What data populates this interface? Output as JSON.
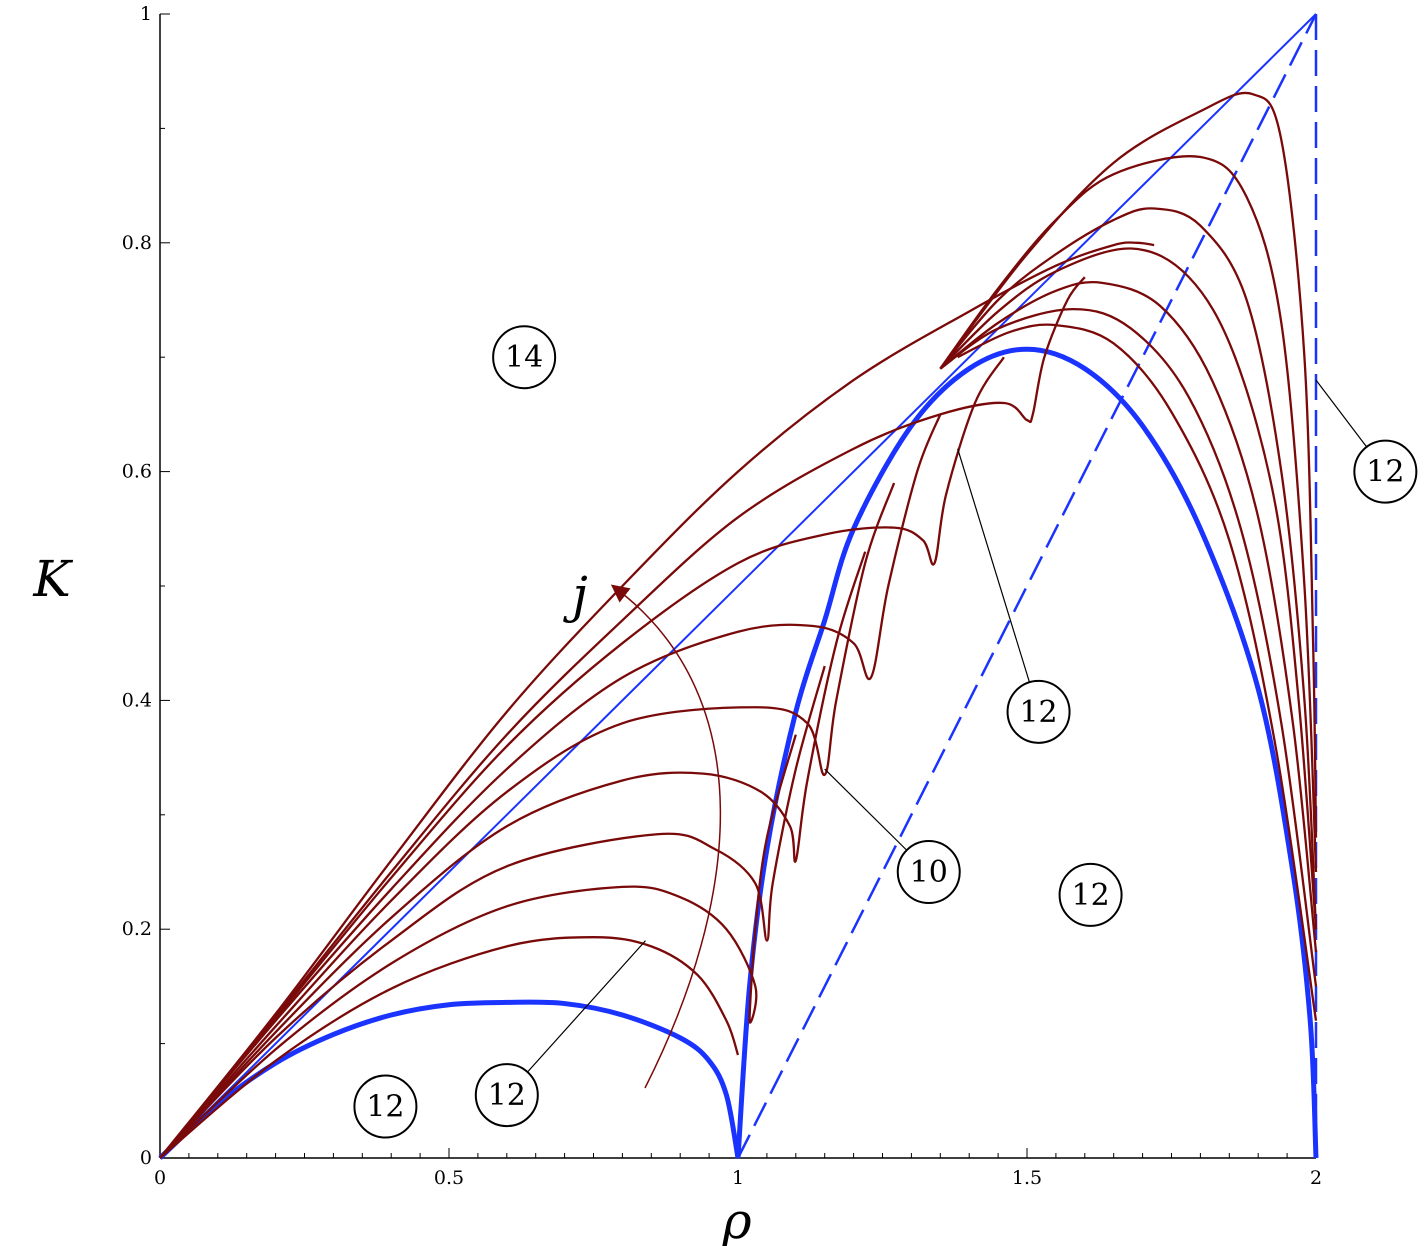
{
  "chart_data": {
    "type": "line",
    "xlabel": "ρ",
    "ylabel": "K",
    "xlim": [
      0,
      2
    ],
    "ylim": [
      0,
      1
    ],
    "x_ticks": [
      {
        "value": 0,
        "label": "0"
      },
      {
        "value": 0.5,
        "label": "0.5"
      },
      {
        "value": 1,
        "label": "1"
      },
      {
        "value": 1.5,
        "label": "1.5"
      },
      {
        "value": 2,
        "label": "2"
      }
    ],
    "y_ticks": [
      {
        "value": 0,
        "label": "0"
      },
      {
        "value": 0.2,
        "label": "0.2"
      },
      {
        "value": 0.4,
        "label": "0.4"
      },
      {
        "value": 0.6,
        "label": "0.6"
      },
      {
        "value": 0.8,
        "label": "0.8"
      },
      {
        "value": 1,
        "label": "1"
      }
    ],
    "grid": false,
    "legend": "none",
    "colors": {
      "boundary": "#1a33ff",
      "family": "#7a0a0a",
      "annotation": "#000000"
    },
    "boundary_curves": [
      {
        "style": "thick",
        "points": [
          [
            0,
            0
          ],
          [
            0.1,
            0.047
          ],
          [
            0.2,
            0.083
          ],
          [
            0.3,
            0.108
          ],
          [
            0.4,
            0.125
          ],
          [
            0.5,
            0.134
          ],
          [
            0.6,
            0.136
          ],
          [
            0.7,
            0.135
          ],
          [
            0.8,
            0.125
          ],
          [
            0.9,
            0.105
          ],
          [
            0.95,
            0.085
          ],
          [
            0.98,
            0.055
          ],
          [
            1.0,
            0.0
          ]
        ]
      },
      {
        "style": "thick",
        "points": [
          [
            1.0,
            0.0
          ],
          [
            1.02,
            0.15
          ],
          [
            1.05,
            0.27
          ],
          [
            1.1,
            0.39
          ],
          [
            1.15,
            0.47
          ],
          [
            1.2,
            0.55
          ],
          [
            1.3,
            0.64
          ],
          [
            1.4,
            0.69
          ],
          [
            1.5,
            0.707
          ],
          [
            1.6,
            0.69
          ],
          [
            1.7,
            0.64
          ],
          [
            1.8,
            0.55
          ],
          [
            1.9,
            0.41
          ],
          [
            1.96,
            0.25
          ],
          [
            1.99,
            0.12
          ],
          [
            2.0,
            0.0
          ]
        ]
      },
      {
        "style": "thin",
        "points": [
          [
            0,
            0
          ],
          [
            2,
            1
          ]
        ]
      },
      {
        "style": "dashed",
        "points": [
          [
            1,
            0
          ],
          [
            2,
            1
          ]
        ]
      },
      {
        "style": "dashed",
        "points": [
          [
            2,
            1
          ],
          [
            2,
            0
          ]
        ]
      }
    ],
    "series": [
      {
        "peak": [
          0.75,
          0.193
        ],
        "points": [
          [
            0,
            0
          ],
          [
            0.2,
            0.085
          ],
          [
            0.4,
            0.148
          ],
          [
            0.6,
            0.185
          ],
          [
            0.75,
            0.193
          ],
          [
            0.85,
            0.185
          ],
          [
            0.93,
            0.16
          ],
          [
            0.98,
            0.12
          ],
          [
            1.0,
            0.09
          ]
        ]
      },
      {
        "peak": [
          0.8,
          0.237
        ],
        "points": [
          [
            0,
            0
          ],
          [
            0.2,
            0.095
          ],
          [
            0.4,
            0.17
          ],
          [
            0.6,
            0.22
          ],
          [
            0.8,
            0.237
          ],
          [
            0.9,
            0.228
          ],
          [
            0.98,
            0.2
          ],
          [
            1.03,
            0.15
          ],
          [
            1.02,
            0.12
          ],
          [
            1.03,
            0.2
          ],
          [
            1.05,
            0.28
          ],
          [
            1.1,
            0.37
          ]
        ]
      },
      {
        "peak": [
          0.86,
          0.283
        ],
        "points": [
          [
            0,
            0
          ],
          [
            0.2,
            0.105
          ],
          [
            0.4,
            0.19
          ],
          [
            0.6,
            0.255
          ],
          [
            0.86,
            0.283
          ],
          [
            0.96,
            0.27
          ],
          [
            1.03,
            0.24
          ],
          [
            1.05,
            0.19
          ],
          [
            1.06,
            0.24
          ],
          [
            1.1,
            0.34
          ],
          [
            1.15,
            0.43
          ]
        ]
      },
      {
        "peak": [
          0.94,
          0.336
        ],
        "points": [
          [
            0,
            0
          ],
          [
            0.2,
            0.11
          ],
          [
            0.4,
            0.21
          ],
          [
            0.6,
            0.29
          ],
          [
            0.8,
            0.33
          ],
          [
            0.94,
            0.336
          ],
          [
            1.04,
            0.32
          ],
          [
            1.09,
            0.29
          ],
          [
            1.1,
            0.26
          ],
          [
            1.12,
            0.33
          ],
          [
            1.17,
            0.45
          ],
          [
            1.22,
            0.53
          ]
        ]
      },
      {
        "peak": [
          1.03,
          0.394
        ],
        "points": [
          [
            0,
            0
          ],
          [
            0.2,
            0.115
          ],
          [
            0.4,
            0.225
          ],
          [
            0.6,
            0.32
          ],
          [
            0.8,
            0.38
          ],
          [
            1.03,
            0.394
          ],
          [
            1.12,
            0.38
          ],
          [
            1.15,
            0.335
          ],
          [
            1.17,
            0.4
          ],
          [
            1.22,
            0.52
          ],
          [
            1.27,
            0.59
          ]
        ]
      },
      {
        "peak": [
          1.13,
          0.465
        ],
        "points": [
          [
            0,
            0
          ],
          [
            0.2,
            0.12
          ],
          [
            0.4,
            0.235
          ],
          [
            0.6,
            0.34
          ],
          [
            0.8,
            0.42
          ],
          [
            1.0,
            0.46
          ],
          [
            1.13,
            0.465
          ],
          [
            1.2,
            0.45
          ],
          [
            1.23,
            0.42
          ],
          [
            1.26,
            0.5
          ],
          [
            1.31,
            0.6
          ],
          [
            1.35,
            0.65
          ]
        ]
      },
      {
        "peak": [
          1.27,
          0.551
        ],
        "points": [
          [
            0,
            0
          ],
          [
            0.2,
            0.122
          ],
          [
            0.4,
            0.245
          ],
          [
            0.6,
            0.36
          ],
          [
            0.8,
            0.45
          ],
          [
            1.0,
            0.52
          ],
          [
            1.15,
            0.545
          ],
          [
            1.27,
            0.551
          ],
          [
            1.32,
            0.54
          ],
          [
            1.34,
            0.52
          ],
          [
            1.36,
            0.58
          ],
          [
            1.41,
            0.66
          ],
          [
            1.46,
            0.7
          ]
        ]
      },
      {
        "peak": [
          1.46,
          0.66
        ],
        "points": [
          [
            0,
            0
          ],
          [
            0.2,
            0.124
          ],
          [
            0.4,
            0.25
          ],
          [
            0.6,
            0.37
          ],
          [
            0.8,
            0.47
          ],
          [
            1.0,
            0.56
          ],
          [
            1.2,
            0.62
          ],
          [
            1.35,
            0.65
          ],
          [
            1.46,
            0.66
          ],
          [
            1.5,
            0.645
          ],
          [
            1.51,
            0.65
          ],
          [
            1.53,
            0.7
          ],
          [
            1.57,
            0.75
          ],
          [
            1.6,
            0.77
          ]
        ]
      },
      {
        "peak": [
          1.72,
          0.8
        ],
        "points": [
          [
            0,
            0
          ],
          [
            0.2,
            0.126
          ],
          [
            0.4,
            0.26
          ],
          [
            0.6,
            0.39
          ],
          [
            0.8,
            0.5
          ],
          [
            1.0,
            0.6
          ],
          [
            1.2,
            0.68
          ],
          [
            1.4,
            0.74
          ],
          [
            1.55,
            0.78
          ],
          [
            1.65,
            0.798
          ],
          [
            1.69,
            0.8
          ],
          [
            1.72,
            0.798
          ]
        ]
      },
      {
        "peak": [
          1.72,
          0.83
        ],
        "points": [
          [
            1.35,
            0.69
          ],
          [
            1.45,
            0.75
          ],
          [
            1.55,
            0.79
          ],
          [
            1.65,
            0.82
          ],
          [
            1.72,
            0.83
          ],
          [
            1.8,
            0.815
          ],
          [
            1.88,
            0.75
          ],
          [
            1.94,
            0.6
          ],
          [
            1.98,
            0.4
          ],
          [
            2.0,
            0.2
          ]
        ]
      },
      {
        "peak": [
          1.8,
          0.875
        ],
        "points": [
          [
            1.35,
            0.69
          ],
          [
            1.45,
            0.76
          ],
          [
            1.55,
            0.82
          ],
          [
            1.65,
            0.86
          ],
          [
            1.8,
            0.875
          ],
          [
            1.88,
            0.84
          ],
          [
            1.94,
            0.73
          ],
          [
            1.98,
            0.5
          ],
          [
            2.0,
            0.25
          ]
        ]
      },
      {
        "peak": [
          1.89,
          0.93
        ],
        "points": [
          [
            1.35,
            0.69
          ],
          [
            1.5,
            0.79
          ],
          [
            1.65,
            0.87
          ],
          [
            1.8,
            0.915
          ],
          [
            1.89,
            0.93
          ],
          [
            1.94,
            0.89
          ],
          [
            1.98,
            0.7
          ],
          [
            1.995,
            0.45
          ],
          [
            2.0,
            0.28
          ]
        ]
      },
      {
        "peak": [
          1.68,
          0.795
        ],
        "points": [
          [
            1.35,
            0.69
          ],
          [
            1.45,
            0.74
          ],
          [
            1.55,
            0.775
          ],
          [
            1.68,
            0.795
          ],
          [
            1.78,
            0.77
          ],
          [
            1.86,
            0.7
          ],
          [
            1.93,
            0.57
          ],
          [
            1.97,
            0.4
          ],
          [
            2.0,
            0.2
          ]
        ]
      },
      {
        "peak": [
          1.63,
          0.765
        ],
        "points": [
          [
            1.35,
            0.69
          ],
          [
            1.45,
            0.73
          ],
          [
            1.55,
            0.758
          ],
          [
            1.63,
            0.765
          ],
          [
            1.73,
            0.745
          ],
          [
            1.82,
            0.68
          ],
          [
            1.9,
            0.56
          ],
          [
            1.96,
            0.38
          ],
          [
            2.0,
            0.18
          ]
        ]
      },
      {
        "peak": [
          1.58,
          0.742
        ],
        "points": [
          [
            1.35,
            0.69
          ],
          [
            1.45,
            0.725
          ],
          [
            1.58,
            0.742
          ],
          [
            1.68,
            0.725
          ],
          [
            1.78,
            0.665
          ],
          [
            1.87,
            0.55
          ],
          [
            1.94,
            0.38
          ],
          [
            2.0,
            0.15
          ]
        ]
      },
      {
        "peak": [
          1.55,
          0.728
        ],
        "points": [
          [
            1.38,
            0.7
          ],
          [
            1.47,
            0.722
          ],
          [
            1.55,
            0.728
          ],
          [
            1.65,
            0.712
          ],
          [
            1.75,
            0.652
          ],
          [
            1.85,
            0.54
          ],
          [
            1.93,
            0.36
          ],
          [
            2.0,
            0.12
          ]
        ]
      }
    ],
    "annotations": {
      "regions": [
        {
          "label": "14",
          "x": 0.63,
          "y": 0.7
        },
        {
          "label": "12",
          "x": 0.39,
          "y": 0.045
        },
        {
          "label": "12",
          "x": 0.6,
          "y": 0.055
        },
        {
          "label": "10",
          "x": 1.33,
          "y": 0.25
        },
        {
          "label": "12",
          "x": 1.52,
          "y": 0.39
        },
        {
          "label": "12",
          "x": 1.61,
          "y": 0.23
        },
        {
          "label": "12",
          "x": 2.12,
          "y": 0.6
        }
      ],
      "arrow_label": "j"
    }
  }
}
